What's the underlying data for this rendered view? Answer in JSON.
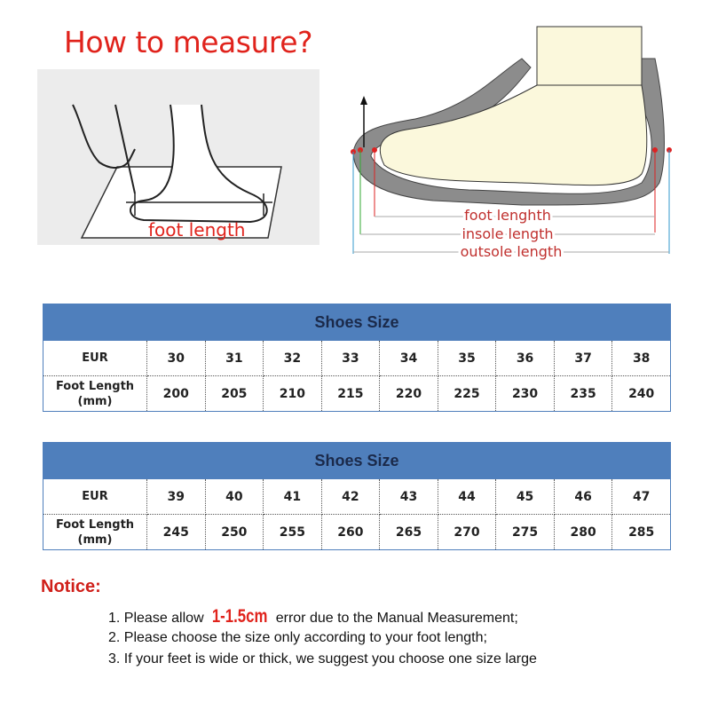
{
  "title": "How to measure?",
  "illustration_left": {
    "label": "foot length"
  },
  "illustration_right": {
    "labels": [
      "foot lenghth",
      "insole length",
      "outsole length"
    ]
  },
  "tables": [
    {
      "header": "Shoes Size",
      "row_labels": [
        "EUR",
        "Foot Length (mm)"
      ],
      "eur": [
        "30",
        "31",
        "32",
        "33",
        "34",
        "35",
        "36",
        "37",
        "38"
      ],
      "foot_length": [
        "200",
        "205",
        "210",
        "215",
        "220",
        "225",
        "230",
        "235",
        "240"
      ]
    },
    {
      "header": "Shoes Size",
      "row_labels": [
        "EUR",
        "Foot Length (mm)"
      ],
      "eur": [
        "39",
        "40",
        "41",
        "42",
        "43",
        "44",
        "45",
        "46",
        "47"
      ],
      "foot_length": [
        "245",
        "250",
        "255",
        "260",
        "265",
        "270",
        "275",
        "280",
        "285"
      ]
    }
  ],
  "notice": {
    "title": "Notice:",
    "line1_pre": "1. Please allow ",
    "line1_highlight": "1-1.5cm",
    "line1_post": " error due to the Manual Measurement;",
    "line2": "2. Please choose the size only according to your foot length;",
    "line3": "3. If your feet is wide or thick, we suggest you choose one size large"
  },
  "colors": {
    "accent_red": "#e0231c",
    "table_header": "#4f7fbc"
  }
}
